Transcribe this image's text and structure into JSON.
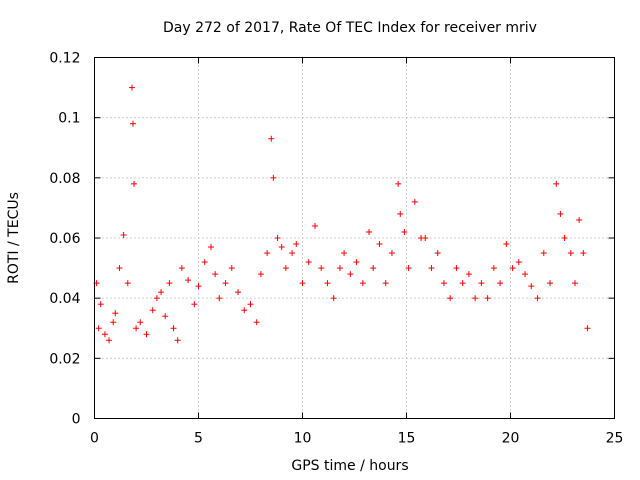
{
  "chart_data": {
    "type": "scatter",
    "title": "Day 272 of 2017, Rate Of TEC Index for receiver mriv",
    "xlabel": "GPS time / hours",
    "ylabel": "ROTI / TECUs",
    "xlim": [
      0,
      25
    ],
    "ylim": [
      0,
      0.12
    ],
    "xticks": [
      "0",
      "5",
      "10",
      "15",
      "20",
      "25"
    ],
    "yticks": [
      "0",
      "0.02",
      "0.04",
      "0.06",
      "0.08",
      "0.1",
      "0.12"
    ],
    "grid": true,
    "marker": "+",
    "color": "#ff0000",
    "series": [
      {
        "name": "ROTI",
        "x": [
          0.1,
          0.2,
          0.3,
          0.5,
          0.7,
          0.9,
          1.0,
          1.2,
          1.4,
          1.6,
          1.8,
          1.85,
          1.9,
          2.0,
          2.2,
          2.5,
          2.8,
          3.0,
          3.2,
          3.4,
          3.6,
          3.8,
          4.0,
          4.2,
          4.5,
          4.8,
          5.0,
          5.3,
          5.6,
          5.8,
          6.0,
          6.3,
          6.6,
          6.9,
          7.2,
          7.5,
          7.8,
          8.0,
          8.3,
          8.5,
          8.6,
          8.8,
          9.0,
          9.2,
          9.5,
          9.7,
          10.0,
          10.3,
          10.6,
          10.9,
          11.2,
          11.5,
          11.8,
          12.0,
          12.3,
          12.6,
          12.9,
          13.2,
          13.4,
          13.7,
          14.0,
          14.3,
          14.6,
          14.7,
          14.9,
          15.1,
          15.4,
          15.7,
          15.9,
          16.2,
          16.5,
          16.8,
          17.1,
          17.4,
          17.7,
          18.0,
          18.3,
          18.6,
          18.9,
          19.2,
          19.5,
          19.8,
          20.1,
          20.4,
          20.7,
          21.0,
          21.3,
          21.6,
          21.9,
          22.2,
          22.4,
          22.6,
          22.9,
          23.1,
          23.3,
          23.5,
          23.7
        ],
        "y": [
          0.045,
          0.03,
          0.038,
          0.028,
          0.026,
          0.032,
          0.035,
          0.05,
          0.061,
          0.045,
          0.11,
          0.098,
          0.078,
          0.03,
          0.032,
          0.028,
          0.036,
          0.04,
          0.042,
          0.034,
          0.045,
          0.03,
          0.026,
          0.05,
          0.046,
          0.038,
          0.044,
          0.052,
          0.057,
          0.048,
          0.04,
          0.045,
          0.05,
          0.042,
          0.036,
          0.038,
          0.032,
          0.048,
          0.055,
          0.093,
          0.08,
          0.06,
          0.057,
          0.05,
          0.055,
          0.058,
          0.045,
          0.052,
          0.064,
          0.05,
          0.045,
          0.04,
          0.05,
          0.055,
          0.048,
          0.052,
          0.045,
          0.062,
          0.05,
          0.058,
          0.045,
          0.055,
          0.078,
          0.068,
          0.062,
          0.05,
          0.072,
          0.06,
          0.06,
          0.05,
          0.055,
          0.045,
          0.04,
          0.05,
          0.045,
          0.048,
          0.04,
          0.045,
          0.04,
          0.05,
          0.045,
          0.058,
          0.05,
          0.052,
          0.048,
          0.044,
          0.04,
          0.055,
          0.045,
          0.078,
          0.068,
          0.06,
          0.055,
          0.045,
          0.066,
          0.055,
          0.03
        ]
      }
    ]
  }
}
